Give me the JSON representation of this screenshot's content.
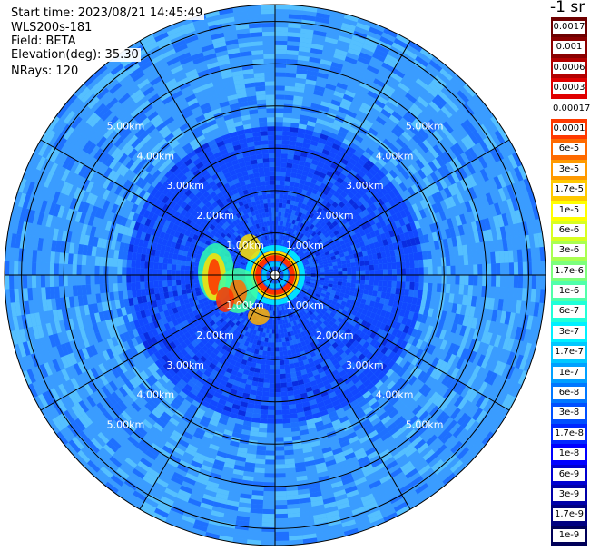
{
  "header": {
    "start_time": "Start time: 2023/08/21 14:45:49",
    "instrument": "WLS200s-181",
    "field": "Field: BETA",
    "elevation": "Elevation(deg): 35.30",
    "nrays": "NRays: 120"
  },
  "colorbar": {
    "unit_label": "-1 sr",
    "entries": [
      {
        "label": "0.0017",
        "color": "#6e0000"
      },
      {
        "label": "0.001",
        "color": "#8b0000"
      },
      {
        "label": "0.0006",
        "color": "#b30000"
      },
      {
        "label": "0.0003",
        "color": "#e00000"
      },
      {
        "label": "0.00017",
        "color": "#ffffff"
      },
      {
        "label": "0.0001",
        "color": "#ff3a00"
      },
      {
        "label": "6e-5",
        "color": "#ff6a00"
      },
      {
        "label": "3e-5",
        "color": "#ff9a00"
      },
      {
        "label": "1.7e-5",
        "color": "#ffc800"
      },
      {
        "label": "1e-5",
        "color": "#ffff00"
      },
      {
        "label": "6e-6",
        "color": "#d8ff20"
      },
      {
        "label": "3e-6",
        "color": "#aaff50"
      },
      {
        "label": "1.7e-6",
        "color": "#7cff7c"
      },
      {
        "label": "1e-6",
        "color": "#50ffaa"
      },
      {
        "label": "6e-7",
        "color": "#20ffd8"
      },
      {
        "label": "3e-7",
        "color": "#00f0ff"
      },
      {
        "label": "1.7e-7",
        "color": "#00c8ff"
      },
      {
        "label": "1e-7",
        "color": "#00a0ff"
      },
      {
        "label": "6e-8",
        "color": "#0078ff"
      },
      {
        "label": "3e-8",
        "color": "#0050ff"
      },
      {
        "label": "1.7e-8",
        "color": "#0028ff"
      },
      {
        "label": "1e-8",
        "color": "#0000ff"
      },
      {
        "label": "6e-9",
        "color": "#0000d0"
      },
      {
        "label": "3e-9",
        "color": "#0000a8"
      },
      {
        "label": "1.7e-9",
        "color": "#000080"
      },
      {
        "label": "1e-9",
        "color": "#000058"
      }
    ]
  },
  "plot": {
    "range_labels": [
      "1.00km",
      "2.00km",
      "3.00km",
      "4.00km",
      "5.00km"
    ],
    "range_rings_km": [
      0.5,
      1,
      2,
      3,
      4,
      5,
      6
    ],
    "max_range_km": 6.4,
    "spoke_count": 12,
    "colors": {
      "background_blue": "#1a6cff",
      "outer_cyan": "#3aa8ff",
      "grid": "#000000"
    }
  }
}
